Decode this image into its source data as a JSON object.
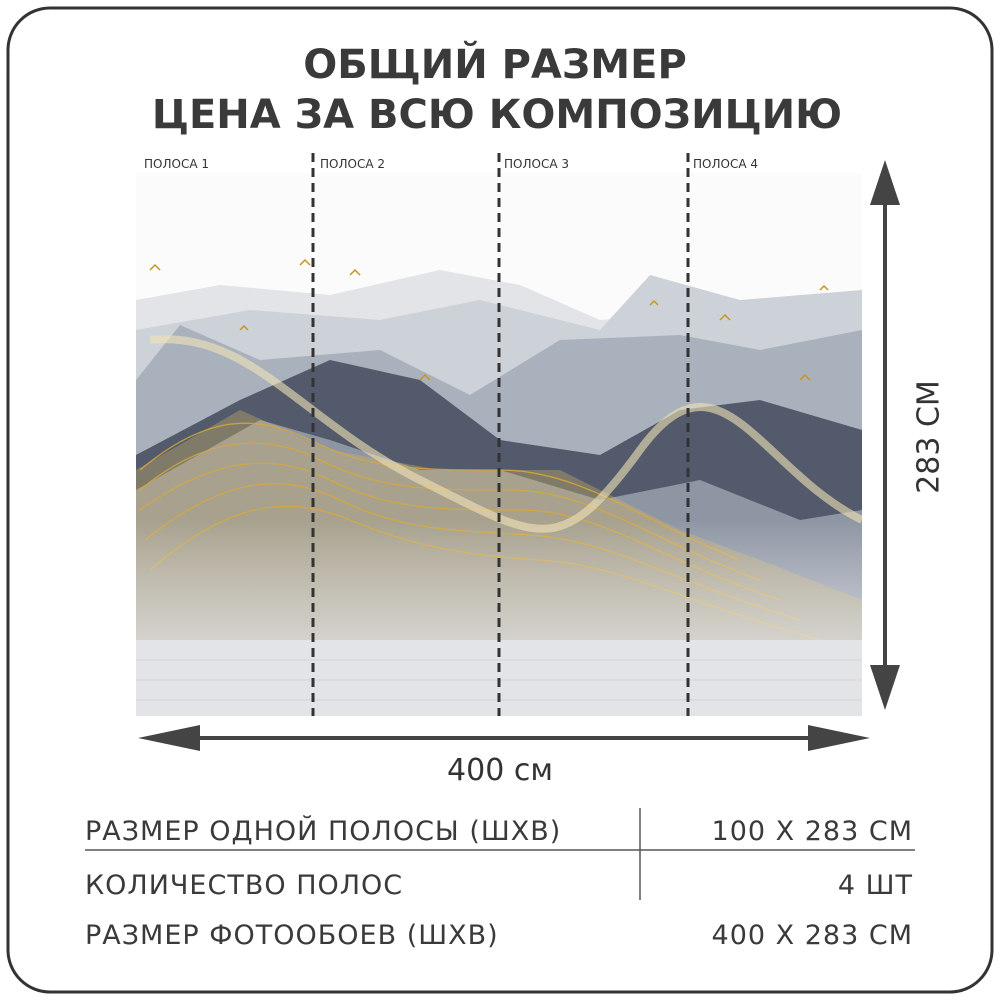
{
  "header": {
    "title_lines": [
      "ОБЩИЙ РАЗМЕР",
      "ЦЕНА ЗА ВСЮ КОМПОЗИЦИЮ"
    ]
  },
  "strips": [
    "ПОЛОСА 1",
    "ПОЛОСА 2",
    "ПОЛОСА 3",
    "ПОЛОСА 4"
  ],
  "dimensions": {
    "height": "283 СМ",
    "width": "400 см"
  },
  "table": {
    "rows": [
      [
        "РАЗМЕР ОДНОЙ ПОЛОСЫ (ШХВ)",
        "100 Х 283 СМ"
      ],
      [
        "КОЛИЧЕСТВО ПОЛОС",
        "4 ШТ"
      ],
      [
        "РАЗМЕР ФОТООБОЕВ (ШХВ)",
        "400 Х 283 СМ"
      ]
    ]
  }
}
